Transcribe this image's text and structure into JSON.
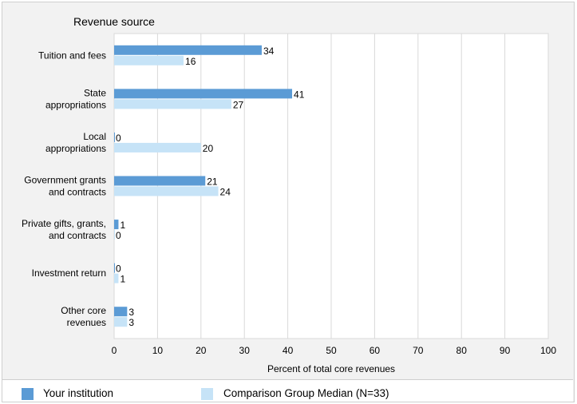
{
  "chart_data": {
    "type": "bar",
    "orientation": "horizontal",
    "heading": "Revenue source",
    "xlabel": "Percent of total core revenues",
    "xlim": [
      0,
      100
    ],
    "xticks": [
      "0",
      "10",
      "20",
      "30",
      "40",
      "50",
      "60",
      "70",
      "80",
      "90",
      "100"
    ],
    "grid": true,
    "legend_placement": "bottom",
    "categories": [
      [
        "Tuition and fees"
      ],
      [
        "State",
        "appropriations"
      ],
      [
        "Local",
        "appropriations"
      ],
      [
        "Government grants",
        "and contracts"
      ],
      [
        "Private gifts, grants,",
        "and contracts"
      ],
      [
        "Investment return"
      ],
      [
        "Other core",
        "revenues"
      ]
    ],
    "series": [
      {
        "name": "Your institution",
        "values": [
          34,
          41,
          0,
          21,
          1,
          0,
          3
        ],
        "color": "#5b9bd5"
      },
      {
        "name": "Comparison Group Median (N=33)",
        "values": [
          16,
          27,
          20,
          24,
          0,
          1,
          3
        ],
        "color": "#c6e3f7"
      }
    ]
  }
}
